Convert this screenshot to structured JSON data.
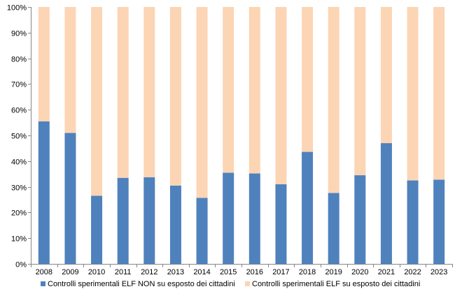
{
  "chart_data": {
    "type": "bar",
    "stacked": true,
    "percent_stacked": true,
    "categories": [
      "2008",
      "2009",
      "2010",
      "2011",
      "2012",
      "2013",
      "2014",
      "2015",
      "2016",
      "2017",
      "2018",
      "2019",
      "2020",
      "2021",
      "2022",
      "2023"
    ],
    "series": [
      {
        "name": "Controlli sperimentali ELF NON su esposto dei cittadini",
        "color": "#4F81BD",
        "values": [
          55.5,
          51,
          26.5,
          33.5,
          33.7,
          30.5,
          25.7,
          35.5,
          35.2,
          31,
          43.6,
          27.6,
          34.5,
          47,
          32.5,
          32.8
        ]
      },
      {
        "name": "Controlli sperimentali ELF su esposto dei cittadini",
        "color": "#FCD5B5",
        "values": [
          44.5,
          49,
          73.5,
          66.5,
          66.3,
          69.5,
          74.3,
          64.5,
          64.8,
          69,
          56.4,
          72.4,
          65.5,
          53,
          67.5,
          67.2
        ]
      }
    ],
    "y_tick_labels": [
      "0%",
      "10%",
      "20%",
      "30%",
      "40%",
      "50%",
      "60%",
      "70%",
      "80%",
      "90%",
      "100%"
    ],
    "ylim": [
      0,
      100
    ],
    "title": "",
    "xlabel": "",
    "ylabel": "",
    "grid": false,
    "legend_position": "bottom"
  }
}
